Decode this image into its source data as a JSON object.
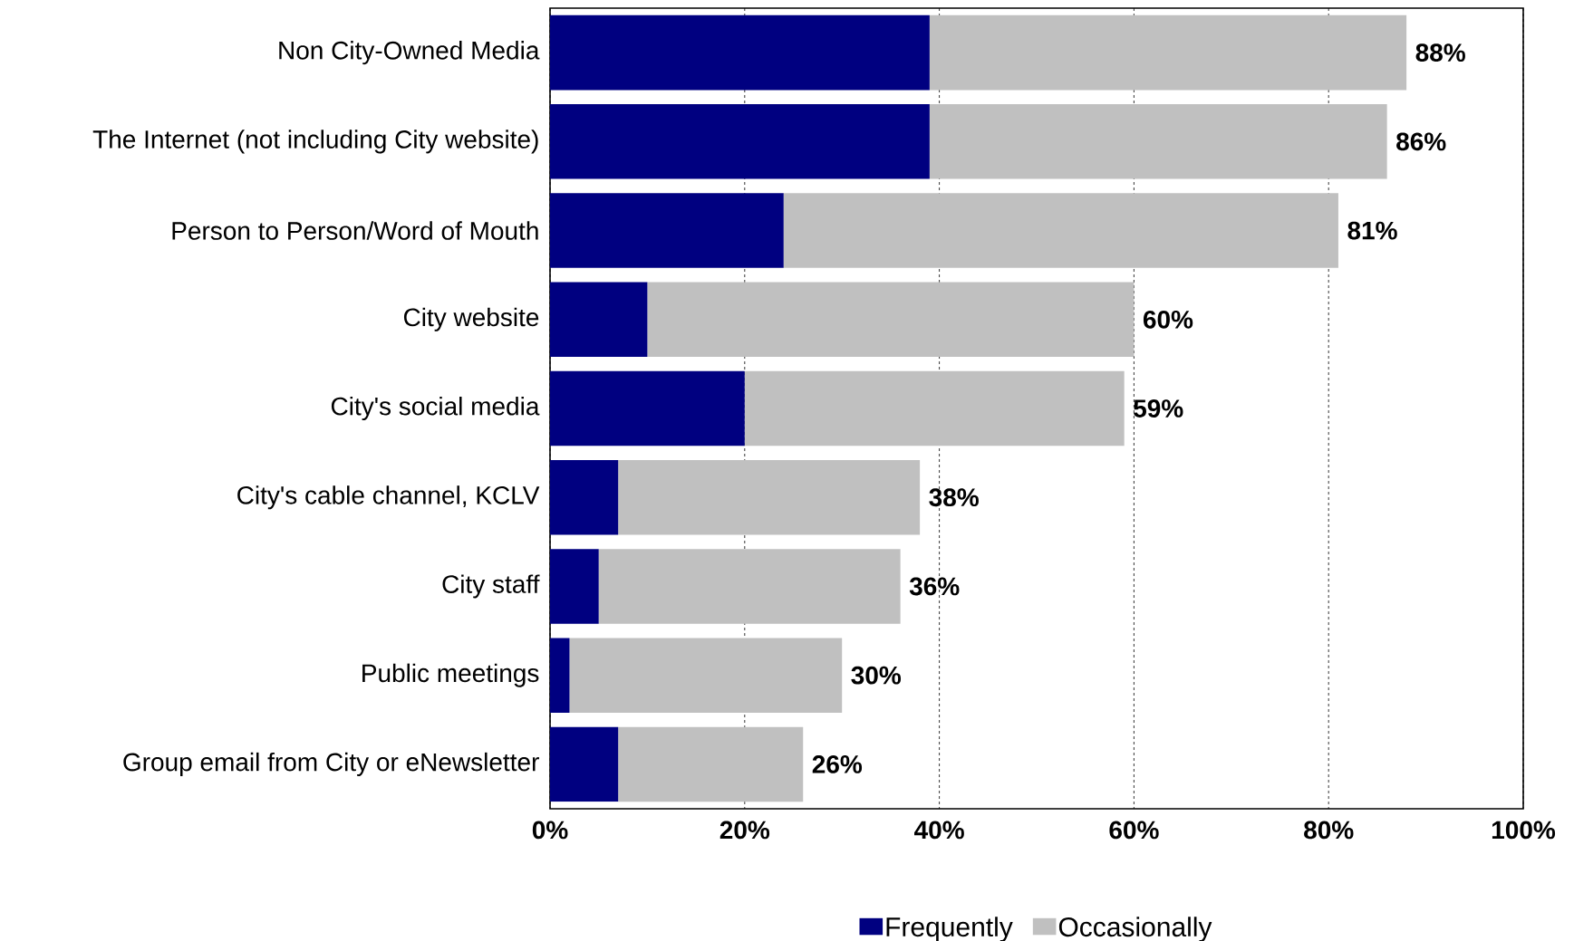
{
  "chart_data": {
    "type": "bar",
    "orientation": "horizontal",
    "stacked": true,
    "categories": [
      "Non City-Owned Media",
      "The Internet (not including City website)",
      "Person to Person/Word of Mouth",
      "City website",
      "City's social media",
      "City's cable channel, KCLV",
      "City staff",
      "Public meetings",
      "Group email from City or eNewsletter"
    ],
    "series": [
      {
        "name": "Frequently",
        "color": "#000080",
        "values": [
          39,
          39,
          24,
          10,
          20,
          7,
          5,
          2,
          7
        ]
      },
      {
        "name": "Occasionally",
        "color": "#c0c0c0",
        "values": [
          49,
          47,
          57,
          50,
          39,
          31,
          31,
          28,
          19
        ]
      }
    ],
    "totals": [
      "88%",
      "86%",
      "81%",
      "60%",
      "59%",
      "38%",
      "36%",
      "30%",
      "26%"
    ],
    "xlim": [
      0,
      100
    ],
    "xticks": [
      {
        "value": 0,
        "label": "0%"
      },
      {
        "value": 20,
        "label": "20%"
      },
      {
        "value": 40,
        "label": "40%"
      },
      {
        "value": 60,
        "label": "60%"
      },
      {
        "value": 80,
        "label": "80%"
      },
      {
        "value": 100,
        "label": "100%"
      }
    ],
    "grid": "x",
    "legend": "bottom"
  }
}
